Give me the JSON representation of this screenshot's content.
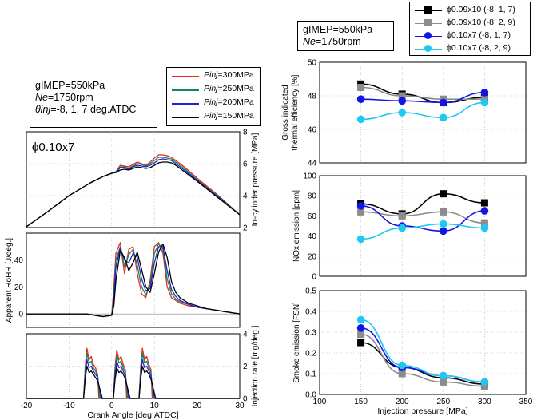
{
  "left_annotation": {
    "line1": "gIMEP=550kPa",
    "line2_var": "Ne",
    "line2_rest": "=1750rpm",
    "line3_var": "θinj",
    "line3_rest": "=-8, 1, 7 deg.ATDC"
  },
  "right_annotation": {
    "line1": "gIMEP=550kPa",
    "line2_var": "Ne",
    "line2_rest": "=1750rpm"
  },
  "left_panel_label": "ϕ0.10x7",
  "pressure_legend": [
    {
      "var": "Pinj",
      "rest": "=300MPa",
      "color": "#e8281e"
    },
    {
      "var": "Pinj",
      "rest": "=250MPa",
      "color": "#14875a"
    },
    {
      "var": "Pinj",
      "rest": "=200MPa",
      "color": "#2222cc"
    },
    {
      "var": "Pinj",
      "rest": "=150MPa",
      "color": "#000000"
    }
  ],
  "nozzle_legend": [
    {
      "label": "ϕ0.09x10 (-8, 1, 7)",
      "color": "#000000",
      "marker": "square"
    },
    {
      "label": "ϕ0.09x10 (-8, 2, 9)",
      "color": "#8c8c8c",
      "marker": "square"
    },
    {
      "label": "ϕ0.10x7 (-8, 1, 7)",
      "color": "#1414e6",
      "marker": "circle"
    },
    {
      "label": "ϕ0.10x7 (-8, 2, 9)",
      "color": "#1ec8f0",
      "marker": "circle"
    }
  ],
  "chart_data": [
    {
      "type": "line",
      "name": "in-cylinder-pressure",
      "ylabel": "In-cylinder pressure [MPa]",
      "xlim": [
        -20,
        30
      ],
      "ylim": [
        2,
        8
      ],
      "yticks": [
        2,
        4,
        6,
        8
      ],
      "series": [
        {
          "name": "Pinj=300MPa",
          "color": "#e8281e",
          "x": [
            -20,
            -15,
            -10,
            -5,
            -2,
            0,
            1,
            2,
            3,
            4,
            5,
            6,
            7,
            8,
            9,
            10,
            11,
            12,
            13,
            14,
            15,
            17,
            20,
            25,
            30
          ],
          "values": [
            2.05,
            3.0,
            4.0,
            4.8,
            5.2,
            5.4,
            5.5,
            5.9,
            5.85,
            5.8,
            5.95,
            6.1,
            6.0,
            5.9,
            6.1,
            6.35,
            6.55,
            6.55,
            6.5,
            6.4,
            6.2,
            5.8,
            5.1,
            4.0,
            2.8
          ]
        },
        {
          "name": "Pinj=250MPa",
          "color": "#14875a",
          "x": [
            -20,
            -15,
            -10,
            -5,
            -2,
            0,
            1,
            2,
            3,
            4,
            5,
            6,
            7,
            8,
            9,
            10,
            11,
            12,
            13,
            14,
            15,
            17,
            20,
            25,
            30
          ],
          "values": [
            2.05,
            3.0,
            4.0,
            4.8,
            5.2,
            5.4,
            5.5,
            5.8,
            5.8,
            5.7,
            5.85,
            6.0,
            5.95,
            5.85,
            6.0,
            6.2,
            6.4,
            6.4,
            6.35,
            6.3,
            6.1,
            5.7,
            5.0,
            3.95,
            2.8
          ]
        },
        {
          "name": "Pinj=200MPa",
          "color": "#2222cc",
          "x": [
            -20,
            -15,
            -10,
            -5,
            -2,
            0,
            1,
            2,
            3,
            4,
            5,
            6,
            7,
            8,
            9,
            10,
            11,
            12,
            13,
            14,
            15,
            17,
            20,
            25,
            30
          ],
          "values": [
            2.05,
            3.0,
            4.0,
            4.8,
            5.2,
            5.4,
            5.45,
            5.75,
            5.75,
            5.65,
            5.8,
            5.9,
            5.85,
            5.8,
            5.9,
            6.05,
            6.25,
            6.3,
            6.25,
            6.2,
            6.0,
            5.6,
            4.95,
            3.9,
            2.8
          ]
        },
        {
          "name": "Pinj=150MPa",
          "color": "#000000",
          "x": [
            -20,
            -15,
            -10,
            -5,
            -2,
            0,
            1,
            2,
            3,
            4,
            5,
            6,
            7,
            8,
            9,
            10,
            11,
            12,
            13,
            14,
            15,
            17,
            20,
            25,
            30
          ],
          "values": [
            2.05,
            3.0,
            4.0,
            4.8,
            5.2,
            5.4,
            5.45,
            5.6,
            5.65,
            5.6,
            5.7,
            5.8,
            5.75,
            5.7,
            5.75,
            5.9,
            6.05,
            6.1,
            6.1,
            6.05,
            5.9,
            5.5,
            4.9,
            3.85,
            2.8
          ]
        }
      ]
    },
    {
      "type": "line",
      "name": "apparent-rohr",
      "ylabel": "Apparent RoHR [J/deg.]",
      "xlim": [
        -20,
        30
      ],
      "ylim": [
        -10,
        60
      ],
      "yticks": [
        0,
        20,
        40
      ],
      "series": [
        {
          "name": "Pinj=300MPa",
          "color": "#e8281e",
          "x": [
            -20,
            -10,
            -6,
            -4,
            -2,
            0,
            0.5,
            1,
            2,
            3,
            4,
            5,
            6,
            7,
            8,
            9,
            10,
            11,
            12,
            13,
            14,
            15,
            16,
            18,
            20,
            22,
            24,
            26,
            28,
            30
          ],
          "values": [
            0,
            0,
            0,
            -1,
            -2,
            -1,
            20,
            45,
            53,
            30,
            48,
            50,
            30,
            15,
            12,
            25,
            50,
            53,
            45,
            20,
            12,
            10,
            8,
            6,
            5,
            4,
            3,
            2,
            1,
            0
          ]
        },
        {
          "name": "Pinj=250MPa",
          "color": "#14875a",
          "x": [
            -20,
            -10,
            -6,
            -4,
            -2,
            0,
            0.5,
            1,
            2,
            3,
            4,
            5,
            6,
            7,
            8,
            9,
            10,
            11,
            12,
            13,
            14,
            15,
            16,
            18,
            20,
            22,
            24,
            26,
            28,
            30
          ],
          "values": [
            0,
            0,
            0,
            -1,
            -2,
            -1,
            15,
            40,
            50,
            35,
            44,
            48,
            36,
            20,
            14,
            22,
            45,
            52,
            48,
            26,
            15,
            11,
            9,
            7,
            5,
            4,
            3,
            2,
            1,
            0
          ]
        },
        {
          "name": "Pinj=200MPa",
          "color": "#2222cc",
          "x": [
            -20,
            -10,
            -6,
            -4,
            -2,
            0,
            0.5,
            1,
            2,
            3,
            4,
            5,
            6,
            7,
            8,
            9,
            10,
            11,
            12,
            13,
            14,
            15,
            16,
            18,
            20,
            22,
            24,
            26,
            28,
            30
          ],
          "values": [
            0,
            0,
            0,
            -1,
            -2,
            -1,
            10,
            35,
            49,
            40,
            38,
            45,
            42,
            26,
            17,
            19,
            38,
            50,
            50,
            32,
            18,
            13,
            10,
            7,
            5,
            4,
            3,
            2,
            1,
            0
          ]
        },
        {
          "name": "Pinj=150MPa",
          "color": "#000000",
          "x": [
            -20,
            -10,
            -6,
            -4,
            -2,
            0,
            0.5,
            1,
            2,
            3,
            4,
            5,
            6,
            7,
            8,
            9,
            10,
            11,
            12,
            13,
            14,
            15,
            16,
            18,
            20,
            22,
            24,
            26,
            28,
            30
          ],
          "values": [
            0,
            0,
            0,
            -1,
            -2,
            -1,
            6,
            25,
            47,
            42,
            32,
            38,
            46,
            33,
            20,
            16,
            30,
            46,
            52,
            42,
            24,
            16,
            12,
            8,
            6,
            4,
            3,
            2,
            1,
            0
          ]
        }
      ]
    },
    {
      "type": "line",
      "name": "injection-rate",
      "xlabel": "Crank Angle [deg.ATDC]",
      "ylabel": "Injection rate [mg/deg.]",
      "xlim": [
        -20,
        30
      ],
      "ylim": [
        0,
        4
      ],
      "yticks": [
        0,
        2,
        4
      ],
      "xticks": [
        -20,
        -10,
        0,
        10,
        20,
        30
      ],
      "series": [
        {
          "name": "Pinj=300MPa",
          "color": "#e8281e",
          "x": [
            -20,
            -6.6,
            -6.2,
            -5.8,
            -5.3,
            -4.8,
            -4.3,
            -3.8,
            -3.3,
            -3,
            0.4,
            0.8,
            1.2,
            1.7,
            2.2,
            2.7,
            3.2,
            3.5,
            6.4,
            6.8,
            7.2,
            7.7,
            8.2,
            8.7,
            9.2,
            9.5,
            30
          ],
          "values": [
            0,
            0,
            2.0,
            3.1,
            2.4,
            2.6,
            2.1,
            1.9,
            1.5,
            0,
            0,
            2.0,
            3.0,
            2.4,
            2.6,
            2.1,
            1.8,
            0,
            0,
            2.0,
            3.1,
            2.4,
            2.6,
            2.1,
            1.8,
            0,
            0
          ]
        },
        {
          "name": "Pinj=250MPa",
          "color": "#14875a",
          "x": [
            -20,
            -6.6,
            -6.2,
            -5.8,
            -5.3,
            -4.8,
            -4.3,
            -3.8,
            -3.3,
            -2.8,
            0.4,
            0.8,
            1.2,
            1.7,
            2.2,
            2.7,
            3.2,
            3.7,
            6.4,
            6.8,
            7.2,
            7.7,
            8.2,
            8.7,
            9.2,
            9.7,
            30
          ],
          "values": [
            0,
            0,
            1.8,
            2.8,
            2.2,
            2.3,
            1.9,
            1.7,
            1.4,
            0,
            0,
            1.8,
            2.7,
            2.2,
            2.3,
            1.9,
            1.6,
            0,
            0,
            1.8,
            2.8,
            2.2,
            2.3,
            1.9,
            1.6,
            0,
            0
          ]
        },
        {
          "name": "Pinj=200MPa",
          "color": "#2222cc",
          "x": [
            -20,
            -6.6,
            -6.2,
            -5.8,
            -5.3,
            -4.8,
            -4.3,
            -3.8,
            -3.3,
            -2.5,
            0.4,
            0.8,
            1.2,
            1.7,
            2.2,
            2.7,
            3.2,
            4.0,
            6.4,
            6.8,
            7.2,
            7.7,
            8.2,
            8.7,
            9.2,
            10.0,
            30
          ],
          "values": [
            0,
            0,
            1.5,
            2.4,
            1.9,
            2.0,
            1.7,
            1.5,
            1.3,
            0,
            0,
            1.5,
            2.3,
            1.9,
            2.0,
            1.7,
            1.4,
            0,
            0,
            1.5,
            2.4,
            1.9,
            2.0,
            1.7,
            1.4,
            0,
            0
          ]
        },
        {
          "name": "Pinj=150MPa",
          "color": "#000000",
          "x": [
            -20,
            -6.6,
            -6.2,
            -5.8,
            -5.3,
            -4.8,
            -4.3,
            -3.8,
            -3.3,
            -2.2,
            0.4,
            0.8,
            1.2,
            1.7,
            2.2,
            2.7,
            3.2,
            4.3,
            6.4,
            6.8,
            7.2,
            7.7,
            8.2,
            8.7,
            9.2,
            10.3,
            30
          ],
          "values": [
            0,
            0,
            1.2,
            2.0,
            1.6,
            1.7,
            1.5,
            1.3,
            1.1,
            0,
            0,
            1.2,
            1.9,
            1.6,
            1.7,
            1.5,
            1.2,
            0,
            0,
            1.2,
            2.0,
            1.6,
            1.7,
            1.5,
            1.2,
            0,
            0
          ]
        }
      ]
    },
    {
      "type": "scatter",
      "name": "thermal-efficiency",
      "ylabel": "Gross indicated thermal efficiency [%]",
      "xlim": [
        100,
        350
      ],
      "ylim": [
        44,
        50
      ],
      "yticks": [
        44,
        46,
        48,
        50
      ],
      "x": [
        150,
        200,
        250,
        300
      ],
      "series": [
        {
          "name": "ϕ0.09x10 (-8, 1, 7)",
          "color": "#000000",
          "marker": "square",
          "values": [
            48.7,
            48.1,
            47.6,
            47.9
          ]
        },
        {
          "name": "ϕ0.09x10 (-8, 2, 9)",
          "color": "#8c8c8c",
          "marker": "square",
          "values": [
            48.5,
            48.0,
            47.8,
            47.8
          ]
        },
        {
          "name": "ϕ0.10x7 (-8, 1, 7)",
          "color": "#1414e6",
          "marker": "circle",
          "values": [
            47.8,
            47.7,
            47.6,
            48.2
          ]
        },
        {
          "name": "ϕ0.10x7 (-8, 2, 9)",
          "color": "#1ec8f0",
          "marker": "circle",
          "values": [
            46.6,
            47.0,
            46.7,
            47.6
          ]
        }
      ]
    },
    {
      "type": "scatter",
      "name": "nox-emission",
      "ylabel": "NOx emission [ppm]",
      "xlim": [
        100,
        350
      ],
      "ylim": [
        0,
        100
      ],
      "yticks": [
        0,
        20,
        40,
        60,
        80,
        100
      ],
      "x": [
        150,
        200,
        250,
        300
      ],
      "series": [
        {
          "name": "ϕ0.09x10 (-8, 1, 7)",
          "color": "#000000",
          "marker": "square",
          "values": [
            72,
            62,
            82,
            73
          ]
        },
        {
          "name": "ϕ0.09x10 (-8, 2, 9)",
          "color": "#8c8c8c",
          "marker": "square",
          "values": [
            64,
            60,
            64,
            53
          ]
        },
        {
          "name": "ϕ0.10x7 (-8, 1, 7)",
          "color": "#1414e6",
          "marker": "circle",
          "values": [
            70,
            50,
            45,
            65
          ]
        },
        {
          "name": "ϕ0.10x7 (-8, 2, 9)",
          "color": "#1ec8f0",
          "marker": "circle",
          "values": [
            37,
            48,
            52,
            48
          ]
        }
      ]
    },
    {
      "type": "scatter",
      "name": "smoke-emission",
      "xlabel": "Injection pressure [MPa]",
      "ylabel": "Smoke emission [FSN]",
      "xlim": [
        100,
        350
      ],
      "ylim": [
        0,
        0.5
      ],
      "yticks": [
        0,
        0.1,
        0.2,
        0.3,
        0.4,
        0.5
      ],
      "xticks": [
        100,
        150,
        200,
        250,
        300,
        350
      ],
      "x": [
        150,
        200,
        250,
        300
      ],
      "series": [
        {
          "name": "ϕ0.09x10 (-8, 1, 7)",
          "color": "#000000",
          "marker": "square",
          "values": [
            0.25,
            0.13,
            0.08,
            0.05
          ]
        },
        {
          "name": "ϕ0.09x10 (-8, 2, 9)",
          "color": "#8c8c8c",
          "marker": "square",
          "values": [
            0.29,
            0.1,
            0.06,
            0.04
          ]
        },
        {
          "name": "ϕ0.10x7 (-8, 1, 7)",
          "color": "#1414e6",
          "marker": "circle",
          "values": [
            0.32,
            0.13,
            0.09,
            0.06
          ]
        },
        {
          "name": "ϕ0.10x7 (-8, 2, 9)",
          "color": "#1ec8f0",
          "marker": "circle",
          "values": [
            0.36,
            0.14,
            0.09,
            0.06
          ]
        }
      ]
    }
  ]
}
